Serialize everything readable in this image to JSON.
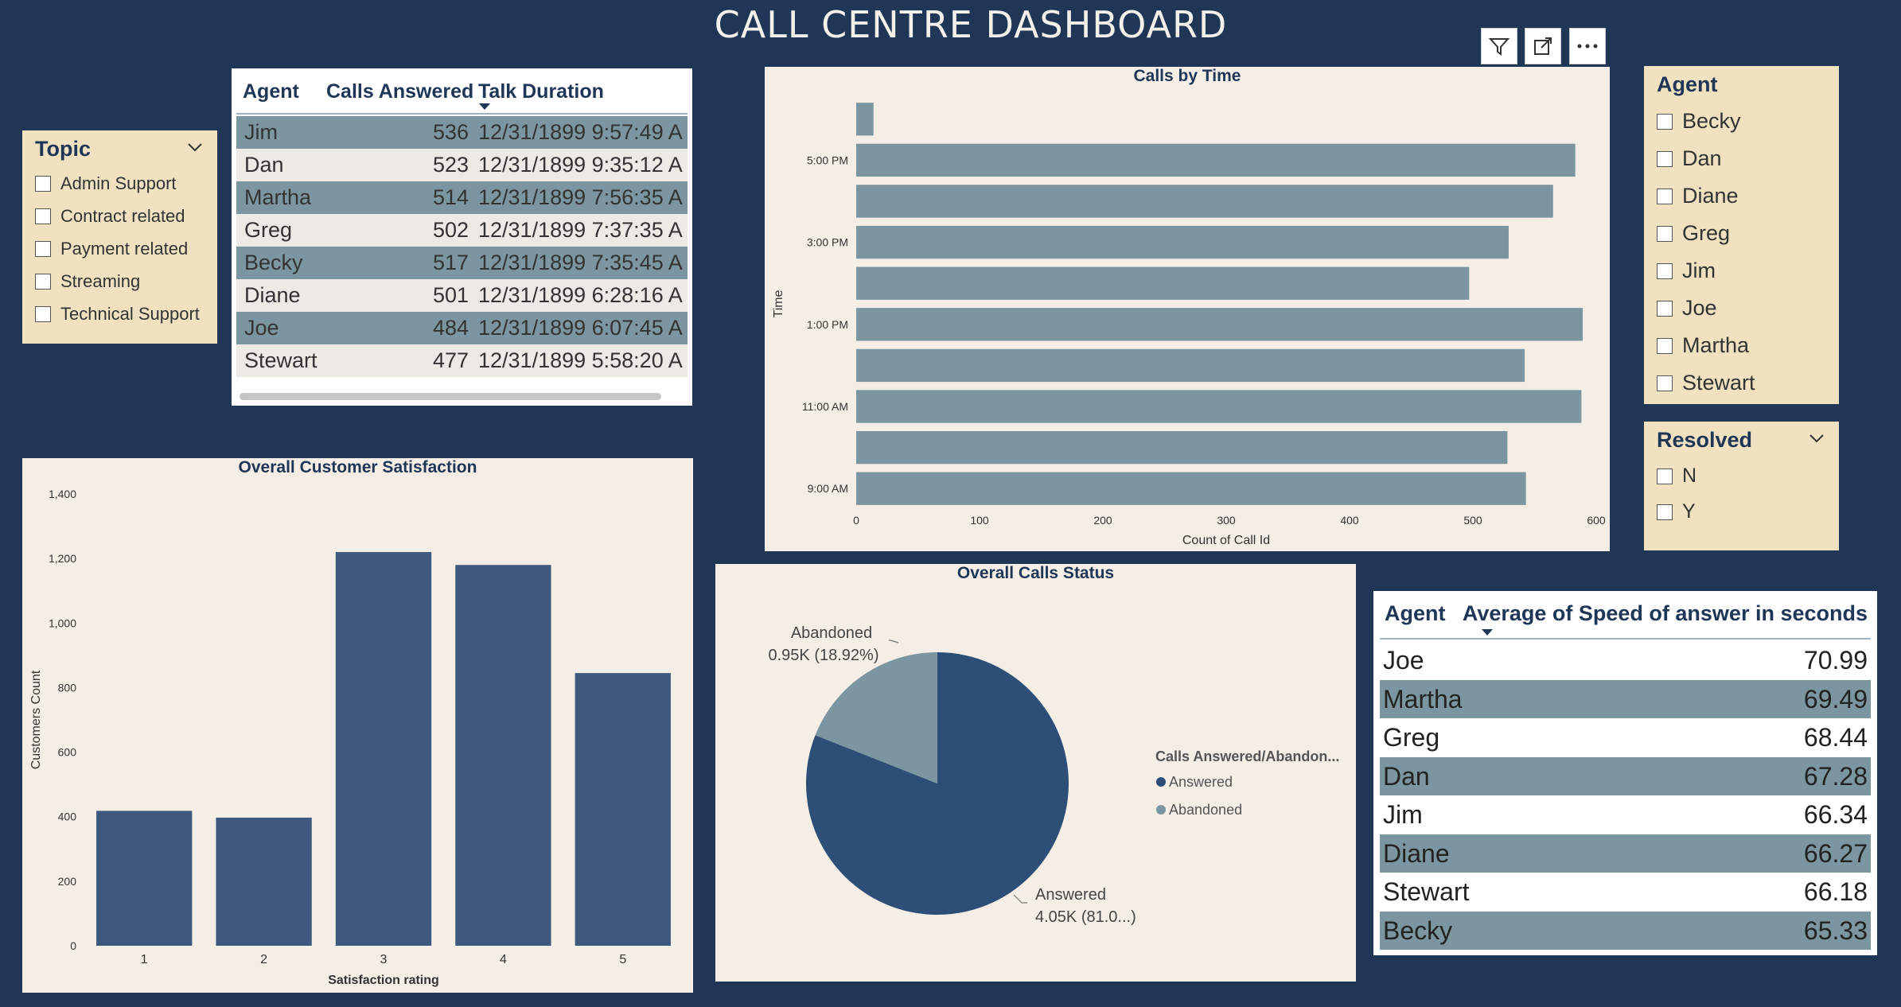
{
  "header": {
    "title": "CALL CENTRE DASHBOARD"
  },
  "toolbar": {
    "filter_icon": "filter-icon",
    "focus_icon": "focus-mode-icon",
    "more_icon": "more-options-icon"
  },
  "topic_slicer": {
    "title": "Topic",
    "items": [
      "Admin Support",
      "Contract related",
      "Payment related",
      "Streaming",
      "Technical Support"
    ]
  },
  "agent_table": {
    "columns": [
      "Agent",
      "Calls Answered",
      "Talk Duration"
    ],
    "sort_column": "Talk Duration",
    "rows": [
      {
        "agent": "Jim",
        "calls": "536",
        "talk": "12/31/1899 9:57:49 A"
      },
      {
        "agent": "Dan",
        "calls": "523",
        "talk": "12/31/1899 9:35:12 A"
      },
      {
        "agent": "Martha",
        "calls": "514",
        "talk": "12/31/1899 7:56:35 A"
      },
      {
        "agent": "Greg",
        "calls": "502",
        "talk": "12/31/1899 7:37:35 A"
      },
      {
        "agent": "Becky",
        "calls": "517",
        "talk": "12/31/1899 7:35:45 A"
      },
      {
        "agent": "Diane",
        "calls": "501",
        "talk": "12/31/1899 6:28:16 A"
      },
      {
        "agent": "Joe",
        "calls": "484",
        "talk": "12/31/1899 6:07:45 A"
      },
      {
        "agent": "Stewart",
        "calls": "477",
        "talk": "12/31/1899 5:58:20 A"
      }
    ]
  },
  "agent_slicer": {
    "title": "Agent",
    "items": [
      "Becky",
      "Dan",
      "Diane",
      "Greg",
      "Jim",
      "Joe",
      "Martha",
      "Stewart"
    ]
  },
  "resolved_slicer": {
    "title": "Resolved",
    "items": [
      "N",
      "Y"
    ]
  },
  "speed_table": {
    "columns": [
      "Agent",
      "Average of Speed of answer in seconds"
    ],
    "rows": [
      {
        "agent": "Joe",
        "value": "70.99"
      },
      {
        "agent": "Martha",
        "value": "69.49"
      },
      {
        "agent": "Greg",
        "value": "68.44"
      },
      {
        "agent": "Dan",
        "value": "67.28"
      },
      {
        "agent": "Jim",
        "value": "66.34"
      },
      {
        "agent": "Diane",
        "value": "66.27"
      },
      {
        "agent": "Stewart",
        "value": "66.18"
      },
      {
        "agent": "Becky",
        "value": "65.33"
      }
    ]
  },
  "colors": {
    "background": "#1f3656",
    "panel": "#f4eee6",
    "slicer": "#f0e2c0",
    "bar_dark": "#3d5a7e",
    "bar_grey": "#7b95a1",
    "pie_dark": "#2d4f77",
    "pie_light": "#7b95a1"
  },
  "chart_data": [
    {
      "type": "bar",
      "orientation": "horizontal",
      "title": "Calls by Time",
      "xlabel": "Count of Call Id",
      "ylabel": "Time",
      "xlim": [
        0,
        600
      ],
      "x_ticks": [
        "0",
        "100",
        "200",
        "300",
        "400",
        "500",
        "600"
      ],
      "categories": [
        "9:00 AM",
        "10:00 AM",
        "11:00 AM",
        "12:00 PM",
        "1:00 PM",
        "2:00 PM",
        "3:00 PM",
        "4:00 PM",
        "5:00 PM",
        "6:00 PM"
      ],
      "y_tick_labels": [
        "9:00 AM",
        "11:00 AM",
        "1:00 PM",
        "3:00 PM",
        "5:00 PM"
      ],
      "values": [
        543,
        528,
        588,
        542,
        589,
        497,
        529,
        565,
        583,
        14
      ]
    },
    {
      "type": "bar",
      "title": "Overall Customer Satisfaction",
      "xlabel": "Satisfaction rating",
      "ylabel": "Customers Count",
      "ylim": [
        0,
        1400
      ],
      "y_ticks": [
        "0",
        "200",
        "400",
        "600",
        "800",
        "1,000",
        "1,200",
        "1,400"
      ],
      "categories": [
        "1",
        "2",
        "3",
        "4",
        "5"
      ],
      "values": [
        418,
        397,
        1220,
        1180,
        845
      ]
    },
    {
      "type": "pie",
      "title": "Overall Calls Status",
      "legend_title": "Calls Answered/Abandon...",
      "slices": [
        {
          "name": "Answered",
          "value": 4.05,
          "percent": 81.08,
          "label_line1": "Answered",
          "label_line2": "4.05K (81.0...)"
        },
        {
          "name": "Abandoned",
          "value": 0.95,
          "percent": 18.92,
          "label_line1": "Abandoned",
          "label_line2": "0.95K (18.92%)"
        }
      ]
    }
  ]
}
